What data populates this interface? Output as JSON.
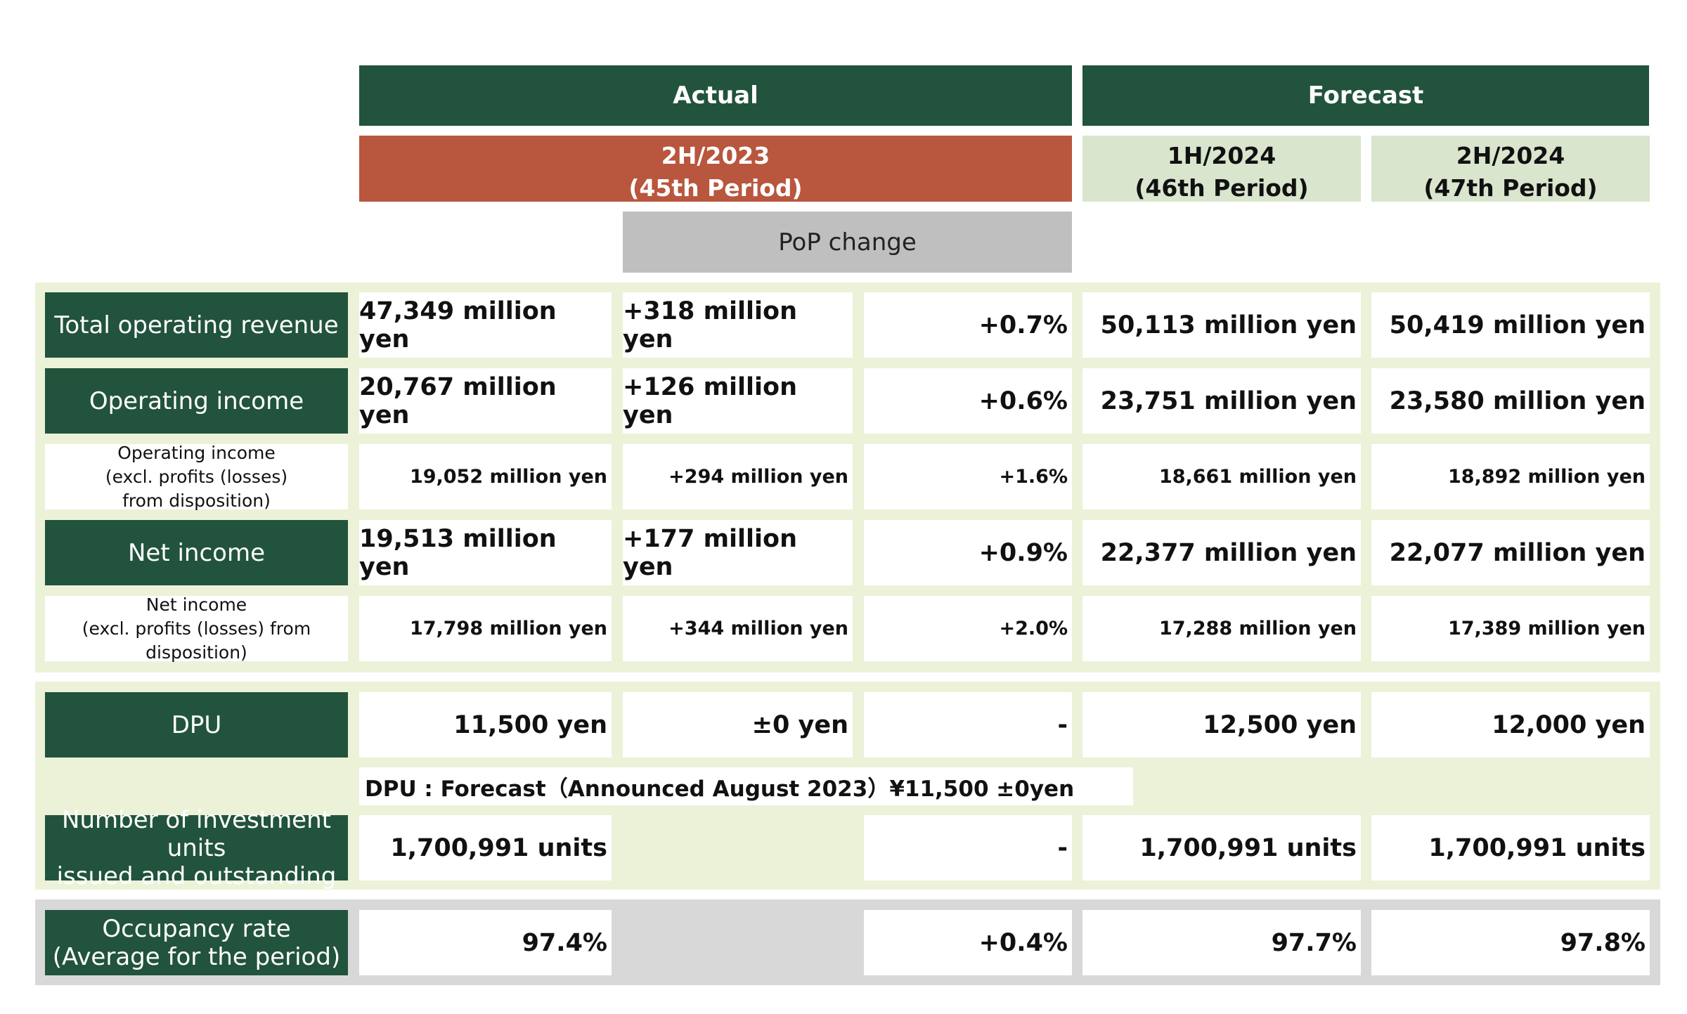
{
  "header": {
    "actual": "Actual",
    "forecast": "Forecast",
    "period_actual_line1": "2H/2023",
    "period_actual_line2": "(45th Period)",
    "period_f1_line1": "1H/2024",
    "period_f1_line2": "(46th Period)",
    "period_f2_line1": "2H/2024",
    "period_f2_line2": "(47th Period)",
    "pop_change": "PoP change"
  },
  "rows": {
    "revenue": {
      "label": "Total operating revenue",
      "actual": "47,349 million yen",
      "pop_abs": "+318 million yen",
      "pop_pct": "+0.7%",
      "f1": "50,113 million yen",
      "f2": "50,419 million yen"
    },
    "op_income": {
      "label": "Operating income",
      "actual": "20,767 million yen",
      "pop_abs": "+126 million yen",
      "pop_pct": "+0.6%",
      "f1": "23,751 million yen",
      "f2": "23,580 million yen"
    },
    "op_income_excl": {
      "label": "Operating income\n(excl. profits (losses)\nfrom disposition)",
      "actual": "19,052 million yen",
      "pop_abs": "+294 million yen",
      "pop_pct": "+1.6%",
      "f1": "18,661 million yen",
      "f2": "18,892 million yen"
    },
    "net_income": {
      "label": "Net income",
      "actual": "19,513 million yen",
      "pop_abs": "+177 million yen",
      "pop_pct": "+0.9%",
      "f1": "22,377 million yen",
      "f2": "22,077 million yen"
    },
    "net_income_excl": {
      "label": "Net income\n(excl. profits (losses) from\ndisposition)",
      "actual": "17,798 million yen",
      "pop_abs": "+344 million yen",
      "pop_pct": "+2.0%",
      "f1": "17,288 million yen",
      "f2": "17,389 million yen"
    },
    "dpu": {
      "label": "DPU",
      "actual": "11,500 yen",
      "pop_abs": "±0 yen",
      "pop_pct": "-",
      "f1": "12,500 yen",
      "f2": "12,000 yen"
    },
    "dpu_note": "DPU : Forecast（Announced August 2023）¥11,500 ±0yen",
    "units": {
      "label": "Number of investment  units\nissued and outstanding",
      "actual": "1,700,991 units",
      "pop_pct": "-",
      "f1": "1,700,991 units",
      "f2": "1,700,991 units"
    },
    "occupancy": {
      "label": "Occupancy rate\n(Average for the period)",
      "actual": "97.4%",
      "pop_pct": "+0.4%",
      "f1": "97.7%",
      "f2": "97.8%"
    }
  },
  "colors": {
    "dark_green": "#22533d",
    "actual_red": "#b8563e",
    "light_green": "#d9e5cd",
    "band_green": "#ebf2d8",
    "band_gray": "#d8d8d8",
    "pop_gray": "#bfbfbf"
  }
}
